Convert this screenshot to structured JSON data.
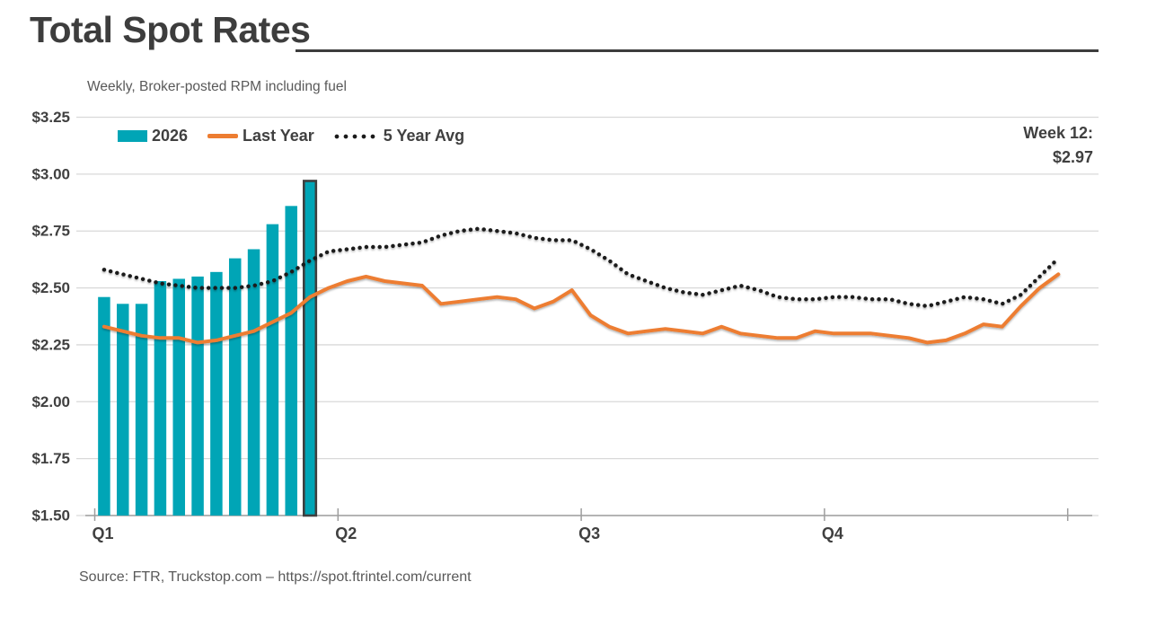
{
  "header": {
    "title": "Total Spot Rates",
    "subtitle": "Weekly, Broker-posted RPM including fuel"
  },
  "annotation": {
    "line1": "Week 12:",
    "line2": "$2.97"
  },
  "legend": {
    "items": [
      {
        "label": "2026"
      },
      {
        "label": "Last Year"
      },
      {
        "label": "5 Year Avg"
      }
    ]
  },
  "footer": {
    "source": "Source: FTR, Truckstop.com – https://spot.ftrintel.com/current"
  },
  "colors": {
    "text_dark": "#404040",
    "muted": "#595959",
    "gridline": "#d9d9d9",
    "axis": "#9e9e9e",
    "highlight_outline": "#3f3f3f"
  },
  "chart_data": {
    "type": "bar",
    "subtype": "bar + line combo, weekly x-axis",
    "title": "Total Spot Rates",
    "subtitle": "Weekly, Broker-posted RPM including fuel",
    "x_unit": "week of year (1-52)",
    "x_quarter_ticks": [
      "Q1",
      "Q2",
      "Q3",
      "Q4"
    ],
    "ylim": [
      1.5,
      3.25
    ],
    "grid": "horizontal gridlines on",
    "legend_position": "top-left",
    "current_week_callout": {
      "week": 12,
      "value": 2.97,
      "text": "Week 12: $2.97"
    },
    "y_ticks": [
      {
        "label": "$3.25",
        "value": 3.25
      },
      {
        "label": "$3.00",
        "value": 3.0
      },
      {
        "label": "$2.75",
        "value": 2.75
      },
      {
        "label": "$2.50",
        "value": 2.5
      },
      {
        "label": "$2.25",
        "value": 2.25
      },
      {
        "label": "$2.00",
        "value": 2.0
      },
      {
        "label": "$1.75",
        "value": 1.75
      },
      {
        "label": "$1.50",
        "value": 1.5
      }
    ],
    "series": [
      {
        "name": "2026",
        "type": "bar",
        "color": "#00a5b6",
        "start_week": 1,
        "highlight_last_bar": true,
        "values": [
          2.46,
          2.43,
          2.43,
          2.53,
          2.54,
          2.55,
          2.57,
          2.63,
          2.67,
          2.78,
          2.86,
          2.97
        ]
      },
      {
        "name": "Last Year",
        "type": "line",
        "color": "#ed7d31",
        "start_week": 1,
        "values": [
          2.33,
          2.31,
          2.29,
          2.28,
          2.28,
          2.26,
          2.27,
          2.29,
          2.31,
          2.35,
          2.39,
          2.46,
          2.5,
          2.53,
          2.55,
          2.53,
          2.52,
          2.51,
          2.43,
          2.44,
          2.45,
          2.46,
          2.45,
          2.41,
          2.44,
          2.49,
          2.38,
          2.33,
          2.3,
          2.31,
          2.32,
          2.31,
          2.3,
          2.33,
          2.3,
          2.29,
          2.28,
          2.28,
          2.31,
          2.3,
          2.3,
          2.3,
          2.29,
          2.28,
          2.26,
          2.27,
          2.3,
          2.34,
          2.33,
          2.42,
          2.5,
          2.56
        ]
      },
      {
        "name": "5 Year Avg",
        "type": "dotted_line",
        "color": "#1a1a1a",
        "start_week": 1,
        "values": [
          2.58,
          2.56,
          2.54,
          2.52,
          2.51,
          2.5,
          2.5,
          2.5,
          2.51,
          2.53,
          2.57,
          2.62,
          2.66,
          2.67,
          2.68,
          2.68,
          2.69,
          2.7,
          2.73,
          2.75,
          2.76,
          2.75,
          2.74,
          2.72,
          2.71,
          2.71,
          2.67,
          2.62,
          2.56,
          2.53,
          2.5,
          2.48,
          2.47,
          2.49,
          2.51,
          2.49,
          2.46,
          2.45,
          2.45,
          2.46,
          2.46,
          2.45,
          2.45,
          2.43,
          2.42,
          2.44,
          2.46,
          2.45,
          2.43,
          2.47,
          2.55,
          2.63
        ]
      }
    ]
  }
}
